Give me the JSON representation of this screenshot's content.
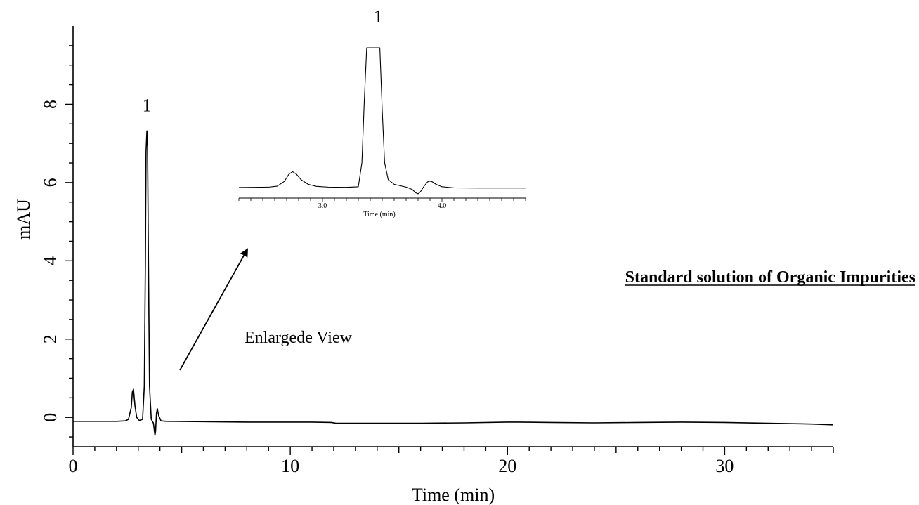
{
  "chart_data": [
    {
      "type": "line",
      "title": "",
      "xlabel": "Time (min)",
      "ylabel": "mAU",
      "xlim": [
        0,
        35
      ],
      "ylim": [
        -0.75,
        10
      ],
      "x_ticks": [
        0,
        10,
        20,
        30
      ],
      "y_ticks": [
        0,
        2,
        4,
        6,
        8
      ],
      "grid": false,
      "legend": "none",
      "series": [
        {
          "x": [
            0,
            2,
            2.4,
            2.55,
            2.68,
            2.73,
            2.78,
            2.85,
            2.93,
            3.05,
            3.2,
            3.28,
            3.33,
            3.36,
            3.4,
            3.43,
            3.47,
            3.52,
            3.6,
            3.7,
            3.77,
            3.8,
            3.84,
            3.88,
            3.94,
            4.05,
            4.3,
            6,
            8,
            10,
            11,
            11.9,
            12.1,
            14,
            16,
            18,
            20,
            20.5,
            22,
            24,
            26,
            28,
            30,
            32,
            34,
            35
          ],
          "y": [
            -0.1,
            -0.1,
            -0.09,
            -0.05,
            0.25,
            0.65,
            0.72,
            0.3,
            0.0,
            -0.08,
            -0.05,
            0.8,
            4.0,
            6.8,
            7.32,
            6.9,
            4.0,
            0.8,
            -0.05,
            -0.15,
            -0.46,
            -0.35,
            0.1,
            0.22,
            0.05,
            -0.09,
            -0.1,
            -0.11,
            -0.12,
            -0.12,
            -0.12,
            -0.13,
            -0.15,
            -0.15,
            -0.15,
            -0.14,
            -0.12,
            -0.12,
            -0.13,
            -0.14,
            -0.13,
            -0.12,
            -0.13,
            -0.15,
            -0.17,
            -0.19
          ]
        }
      ],
      "annotations": [
        {
          "text": "1",
          "x": 3.4,
          "y": 8.0
        }
      ]
    },
    {
      "type": "line",
      "title": "Enlargede View",
      "xlabel": "Time (min)",
      "x_ticks": [
        3.0,
        4.0
      ],
      "x_tick_labels": [
        "3.0",
        "4.0"
      ],
      "grid": false,
      "legend": "none",
      "series": [
        {
          "x": [
            2.3,
            2.55,
            2.62,
            2.68,
            2.72,
            2.75,
            2.78,
            2.82,
            2.88,
            2.95,
            3.05,
            3.2,
            3.3,
            3.33,
            3.35,
            3.37,
            3.48,
            3.5,
            3.52,
            3.55,
            3.6,
            3.7,
            3.75,
            3.78,
            3.8,
            3.82,
            3.85,
            3.88,
            3.9,
            3.92,
            3.95,
            4.0,
            4.1,
            4.3,
            4.7
          ],
          "y": [
            -0.12,
            -0.1,
            -0.05,
            0.2,
            0.6,
            0.72,
            0.6,
            0.3,
            0.05,
            -0.06,
            -0.1,
            -0.11,
            -0.08,
            1.2,
            4.5,
            7.32,
            7.32,
            4.0,
            1.2,
            0.3,
            0.05,
            -0.1,
            -0.22,
            -0.4,
            -0.46,
            -0.35,
            -0.05,
            0.18,
            0.22,
            0.18,
            0.05,
            -0.08,
            -0.14,
            -0.15,
            -0.15
          ]
        }
      ],
      "annotations": [
        {
          "text": "1",
          "x": 3.42,
          "y": 7.32
        }
      ]
    }
  ],
  "caption": "Standard solution of Organic Impurities"
}
